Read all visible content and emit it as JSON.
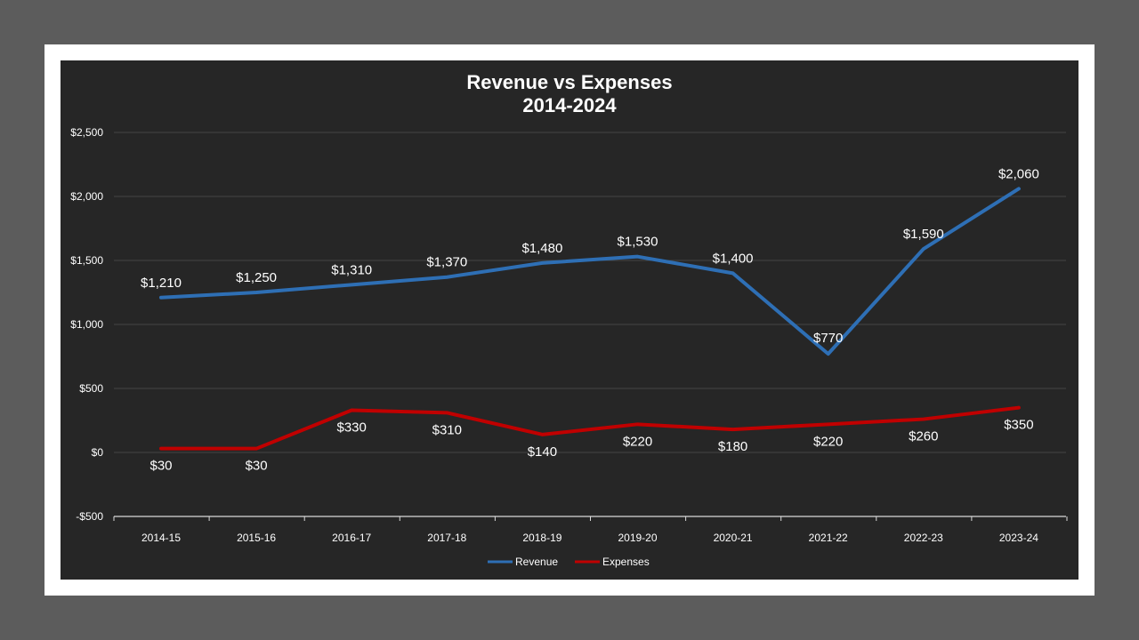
{
  "chart_data": {
    "type": "line",
    "title": "Revenue vs Expenses",
    "subtitle": "2014-2024",
    "categories": [
      "2014-15",
      "2015-16",
      "2016-17",
      "2017-18",
      "2018-19",
      "2019-20",
      "2020-21",
      "2021-22",
      "2022-23",
      "2023-24"
    ],
    "series": [
      {
        "name": "Revenue",
        "color": "#2e6fb5",
        "values": [
          1210,
          1250,
          1310,
          1370,
          1480,
          1530,
          1400,
          770,
          1590,
          2060
        ],
        "labels": [
          "$1,210",
          "$1,250",
          "$1,310",
          "$1,370",
          "$1,480",
          "$1,530",
          "$1,400",
          "$770",
          "$1,590",
          "$2,060"
        ]
      },
      {
        "name": "Expenses",
        "color": "#c00000",
        "values": [
          30,
          30,
          330,
          310,
          140,
          220,
          180,
          220,
          260,
          350
        ],
        "labels": [
          "$30",
          "$30",
          "$330",
          "$310",
          "$140",
          "$220",
          "$180",
          "$220",
          "$260",
          "$350"
        ]
      }
    ],
    "ylim": [
      -500,
      2500
    ],
    "yticks": [
      2500,
      2000,
      1500,
      1000,
      500,
      0,
      -500
    ],
    "ytick_labels": [
      "$2,500",
      "$2,000",
      "$1,500",
      "$1,000",
      "$500",
      "$0",
      "-$500"
    ],
    "grid": true,
    "legend": "bottom",
    "xlabel": "",
    "ylabel": ""
  }
}
